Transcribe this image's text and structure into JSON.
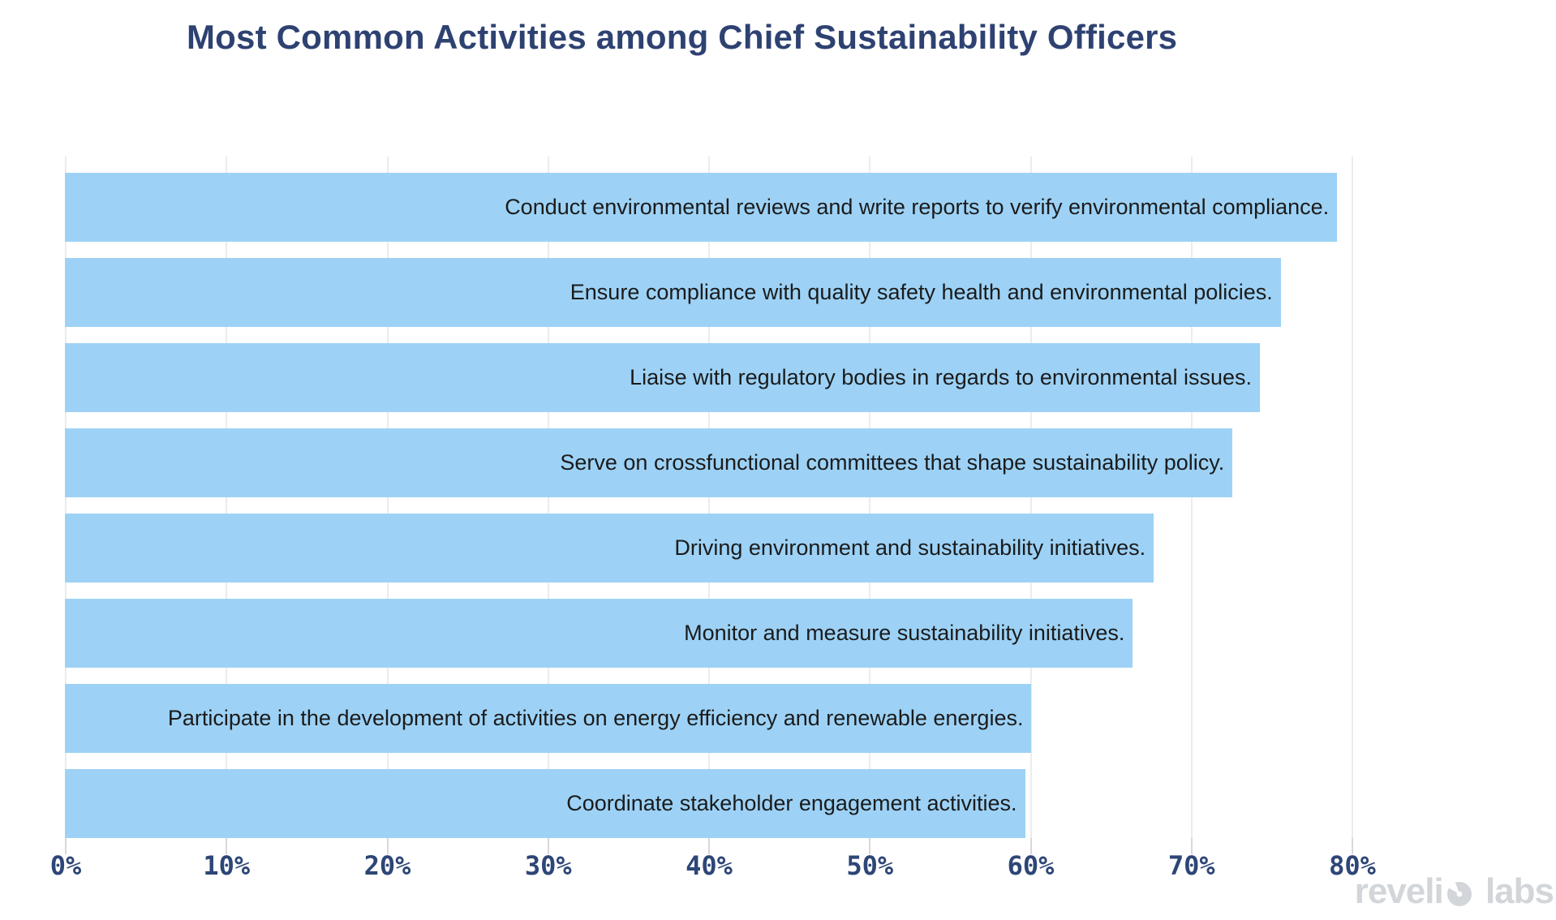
{
  "title": "Most Common Activities among Chief Sustainability Officers",
  "chart_data": {
    "type": "bar",
    "orientation": "horizontal",
    "title": "Most Common Activities among Chief Sustainability Officers",
    "categories": [
      "Conduct environmental reviews and write reports to verify environmental compliance.",
      "Ensure compliance with quality safety health and environmental policies.",
      "Liaise with regulatory bodies in regards to environmental issues.",
      "Serve on crossfunctional committees that shape sustainability policy.",
      "Driving environment and sustainability initiatives.",
      "Monitor and measure sustainability initiatives.",
      "Participate in the development of activities on energy efficiency and renewable energies.",
      "Coordinate stakeholder engagement activities."
    ],
    "values": [
      79.1,
      75.6,
      74.3,
      72.6,
      67.7,
      66.4,
      60.1,
      59.7
    ],
    "unit": "%",
    "xlabel": "",
    "ylabel": "",
    "x_tick_values": [
      0,
      10,
      20,
      30,
      40,
      50,
      60,
      70,
      80
    ],
    "x_tick_labels": [
      "0%",
      "10%",
      "20%",
      "30%",
      "40%",
      "50%",
      "60%",
      "70%",
      "80%"
    ],
    "xlim": [
      0,
      90.8
    ],
    "grid": "vertical-only",
    "legend": "none",
    "bar_labels_position": "inside-right"
  },
  "watermark": {
    "full_text": "revelio labs",
    "text_before_mark": "reveli",
    "text_after_mark": " labs"
  },
  "colors": {
    "background": "#ffffff",
    "title": "#2e4272",
    "bar_fill": "#9dd2f6",
    "bar_label": "#1b1b1b",
    "tick_label": "#2d4677",
    "tick_mark": "#d8d8d8",
    "gridline": "#ececec",
    "watermark": "#d2d5d9"
  }
}
